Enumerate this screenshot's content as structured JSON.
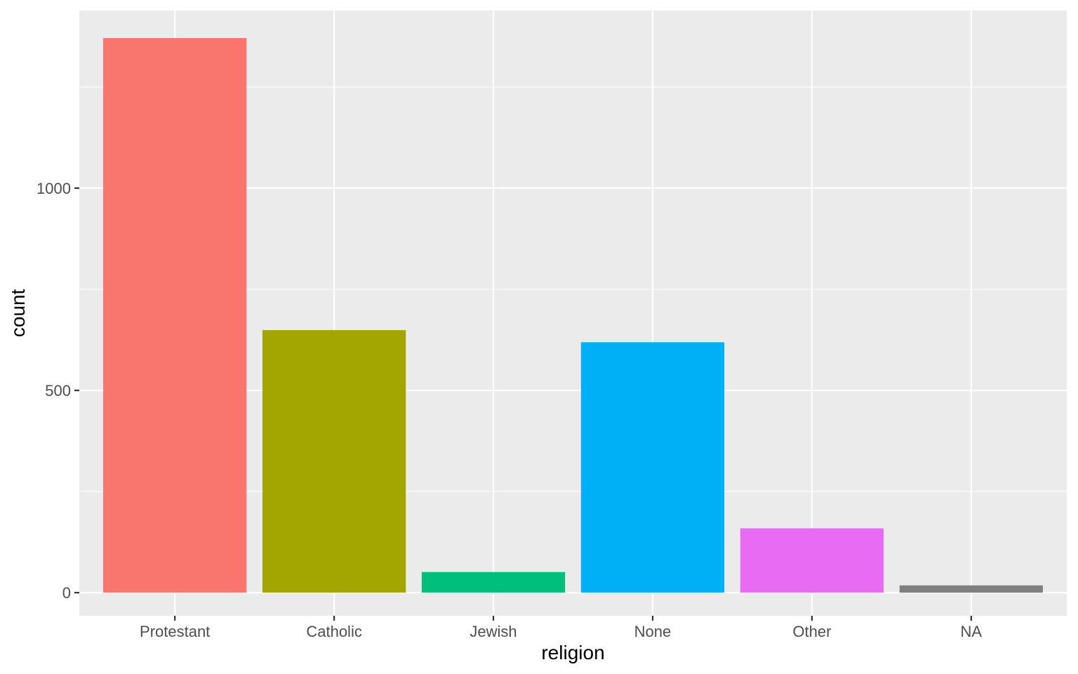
{
  "chart_data": {
    "type": "bar",
    "xlabel": "religion",
    "ylabel": "count",
    "categories": [
      "Protestant",
      "Catholic",
      "Jewish",
      "None",
      "Other",
      "NA"
    ],
    "values": [
      1371,
      649,
      51,
      619,
      159,
      18
    ],
    "colors": [
      "#F8766D",
      "#A3A500",
      "#00BF7D",
      "#00B0F6",
      "#E76BF3",
      "#7F7F7F"
    ],
    "ylim": [
      -57,
      1439
    ],
    "y_ticks": [
      0,
      500,
      1000
    ],
    "y_tick_labels": [
      "0",
      "500",
      "1000"
    ],
    "panel_background": "#EBEBEB",
    "grid": true,
    "legend": "none"
  }
}
